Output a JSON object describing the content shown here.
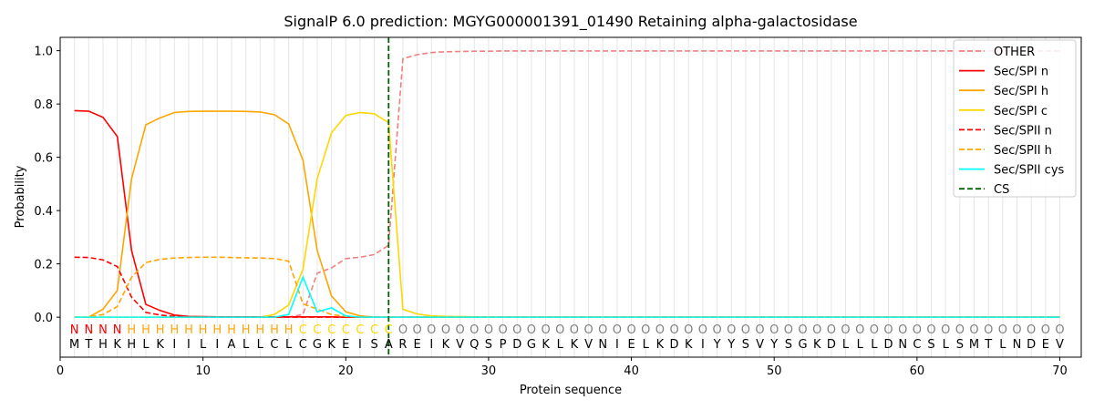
{
  "chart_data": {
    "type": "line",
    "title": "SignalP 6.0 prediction: MGYG000001391_01490 Retaining alpha-galactosidase",
    "xlabel": "Protein sequence",
    "ylabel": "Probability",
    "xlim": [
      0,
      71.5
    ],
    "ylim": [
      -0.15,
      1.05
    ],
    "xticks": [
      0,
      10,
      20,
      30,
      40,
      50,
      60,
      70
    ],
    "yticks": [
      0.0,
      0.2,
      0.4,
      0.6,
      0.8,
      1.0
    ],
    "ytick_labels": [
      "0.0",
      "0.2",
      "0.4",
      "0.6",
      "0.8",
      "1.0"
    ],
    "grid": "vertical lines at each residue",
    "legend_position": "top-right",
    "cleavage_site": 23,
    "sequence": "MTHKHLKIILIALLCLCGKEISAREIKVQSPDGKLKVNIELKDKIYYSVYSGKDLLLDNCSLSMTLNDEV",
    "labels": "NNNNHHHHHHHHHHHHCCCCCCCOOOOOOOOOOOOOOOOOOOOOOOOOOOOOOOOOOOOOOOOOOOOOOO",
    "label_colors": {
      "N": "#ff0000",
      "H": "#ffa500",
      "C": "#ffd700",
      "O": "#808080"
    },
    "series": [
      {
        "name": "OTHER",
        "color": "#f08080",
        "dash": "dashed",
        "values": [
          0.0,
          0.0,
          0.0,
          0.0,
          0.0,
          0.0,
          0.0,
          0.0,
          0.0,
          0.0,
          0.0,
          0.0,
          0.0,
          0.0,
          0.0,
          0.0,
          0.01,
          0.165,
          0.185,
          0.22,
          0.225,
          0.235,
          0.27,
          0.97,
          0.985,
          0.993,
          0.996,
          0.997,
          0.998,
          0.998,
          0.999,
          0.999,
          0.999,
          0.999,
          0.999,
          0.999,
          0.999,
          0.999,
          0.999,
          0.999,
          0.999,
          0.999,
          0.999,
          0.999,
          0.999,
          0.999,
          0.999,
          0.999,
          0.999,
          0.999,
          0.999,
          0.999,
          0.999,
          0.999,
          0.999,
          0.999,
          0.999,
          0.999,
          0.999,
          0.999,
          0.999,
          0.999,
          0.999,
          0.999,
          0.999,
          0.999,
          0.999,
          0.999,
          0.999,
          0.999
        ]
      },
      {
        "name": "Sec/SPI n",
        "color": "#ff0000",
        "dash": "solid",
        "values": [
          0.775,
          0.773,
          0.75,
          0.678,
          0.25,
          0.048,
          0.025,
          0.008,
          0.003,
          0.002,
          0.001,
          0.001,
          0.001,
          0.001,
          0.001,
          0.001,
          0.001,
          0.001,
          0.001,
          0.0,
          0.0,
          0.0,
          0.0,
          0.0,
          0.0,
          0.0,
          0.0,
          0.0,
          0.0,
          0.0,
          0.0,
          0.0,
          0.0,
          0.0,
          0.0,
          0.0,
          0.0,
          0.0,
          0.0,
          0.0,
          0.0,
          0.0,
          0.0,
          0.0,
          0.0,
          0.0,
          0.0,
          0.0,
          0.0,
          0.0,
          0.0,
          0.0,
          0.0,
          0.0,
          0.0,
          0.0,
          0.0,
          0.0,
          0.0,
          0.0,
          0.0,
          0.0,
          0.0,
          0.0,
          0.0,
          0.0,
          0.0,
          0.0,
          0.0,
          0.0
        ]
      },
      {
        "name": "Sec/SPI h",
        "color": "#ffa500",
        "dash": "solid",
        "values": [
          0.0,
          0.0,
          0.03,
          0.1,
          0.52,
          0.722,
          0.748,
          0.768,
          0.772,
          0.773,
          0.773,
          0.773,
          0.772,
          0.77,
          0.76,
          0.725,
          0.59,
          0.25,
          0.08,
          0.02,
          0.005,
          0.0,
          0.0,
          0.0,
          0.0,
          0.0,
          0.0,
          0.0,
          0.0,
          0.0,
          0.0,
          0.0,
          0.0,
          0.0,
          0.0,
          0.0,
          0.0,
          0.0,
          0.0,
          0.0,
          0.0,
          0.0,
          0.0,
          0.0,
          0.0,
          0.0,
          0.0,
          0.0,
          0.0,
          0.0,
          0.0,
          0.0,
          0.0,
          0.0,
          0.0,
          0.0,
          0.0,
          0.0,
          0.0,
          0.0,
          0.0,
          0.0,
          0.0,
          0.0,
          0.0,
          0.0,
          0.0,
          0.0,
          0.0,
          0.0
        ]
      },
      {
        "name": "Sec/SPI c",
        "color": "#ffd700",
        "dash": "solid",
        "values": [
          0.0,
          0.0,
          0.0,
          0.0,
          0.0,
          0.0,
          0.0,
          0.0,
          0.0,
          0.0,
          0.0,
          0.0,
          0.0,
          0.0,
          0.01,
          0.045,
          0.18,
          0.52,
          0.692,
          0.757,
          0.768,
          0.763,
          0.73,
          0.03,
          0.012,
          0.005,
          0.003,
          0.002,
          0.001,
          0.001,
          0.0,
          0.0,
          0.0,
          0.0,
          0.0,
          0.0,
          0.0,
          0.0,
          0.0,
          0.0,
          0.0,
          0.0,
          0.0,
          0.0,
          0.0,
          0.0,
          0.0,
          0.0,
          0.0,
          0.0,
          0.0,
          0.0,
          0.0,
          0.0,
          0.0,
          0.0,
          0.0,
          0.0,
          0.0,
          0.0,
          0.0,
          0.0,
          0.0,
          0.0,
          0.0,
          0.0,
          0.0,
          0.0,
          0.0,
          0.0
        ]
      },
      {
        "name": "Sec/SPII n",
        "color": "#ff0000",
        "dash": "dashed",
        "values": [
          0.225,
          0.224,
          0.215,
          0.19,
          0.075,
          0.018,
          0.008,
          0.003,
          0.001,
          0.0,
          0.0,
          0.0,
          0.0,
          0.0,
          0.0,
          0.0,
          0.0,
          0.0,
          0.0,
          0.0,
          0.0,
          0.0,
          0.0,
          0.0,
          0.0,
          0.0,
          0.0,
          0.0,
          0.0,
          0.0,
          0.0,
          0.0,
          0.0,
          0.0,
          0.0,
          0.0,
          0.0,
          0.0,
          0.0,
          0.0,
          0.0,
          0.0,
          0.0,
          0.0,
          0.0,
          0.0,
          0.0,
          0.0,
          0.0,
          0.0,
          0.0,
          0.0,
          0.0,
          0.0,
          0.0,
          0.0,
          0.0,
          0.0,
          0.0,
          0.0,
          0.0,
          0.0,
          0.0,
          0.0,
          0.0,
          0.0,
          0.0,
          0.0,
          0.0,
          0.0
        ]
      },
      {
        "name": "Sec/SPII h",
        "color": "#ffa500",
        "dash": "dashed",
        "values": [
          0.0,
          0.0,
          0.01,
          0.04,
          0.15,
          0.205,
          0.217,
          0.222,
          0.224,
          0.225,
          0.225,
          0.224,
          0.223,
          0.222,
          0.22,
          0.21,
          0.05,
          0.03,
          0.01,
          0.003,
          0.0,
          0.0,
          0.0,
          0.0,
          0.0,
          0.0,
          0.0,
          0.0,
          0.0,
          0.0,
          0.0,
          0.0,
          0.0,
          0.0,
          0.0,
          0.0,
          0.0,
          0.0,
          0.0,
          0.0,
          0.0,
          0.0,
          0.0,
          0.0,
          0.0,
          0.0,
          0.0,
          0.0,
          0.0,
          0.0,
          0.0,
          0.0,
          0.0,
          0.0,
          0.0,
          0.0,
          0.0,
          0.0,
          0.0,
          0.0,
          0.0,
          0.0,
          0.0,
          0.0,
          0.0,
          0.0,
          0.0,
          0.0,
          0.0,
          0.0
        ]
      },
      {
        "name": "Sec/SPII cys",
        "color": "#00ffff",
        "dash": "solid",
        "values": [
          0.0,
          0.0,
          0.0,
          0.0,
          0.0,
          0.0,
          0.0,
          0.0,
          0.0,
          0.0,
          0.0,
          0.0,
          0.0,
          0.0,
          0.0,
          0.01,
          0.15,
          0.02,
          0.035,
          0.005,
          0.0,
          0.0,
          0.0,
          0.0,
          0.0,
          0.0,
          0.0,
          0.0,
          0.0,
          0.0,
          0.0,
          0.0,
          0.0,
          0.0,
          0.0,
          0.0,
          0.0,
          0.0,
          0.0,
          0.0,
          0.0,
          0.0,
          0.0,
          0.0,
          0.0,
          0.0,
          0.0,
          0.0,
          0.0,
          0.0,
          0.0,
          0.0,
          0.0,
          0.0,
          0.0,
          0.0,
          0.0,
          0.0,
          0.0,
          0.0,
          0.0,
          0.0,
          0.0,
          0.0,
          0.0,
          0.0,
          0.0,
          0.0,
          0.0,
          0.0
        ]
      },
      {
        "name": "CS",
        "color": "#006400",
        "dash": "dashed",
        "kind": "vline",
        "x": 23
      }
    ]
  }
}
